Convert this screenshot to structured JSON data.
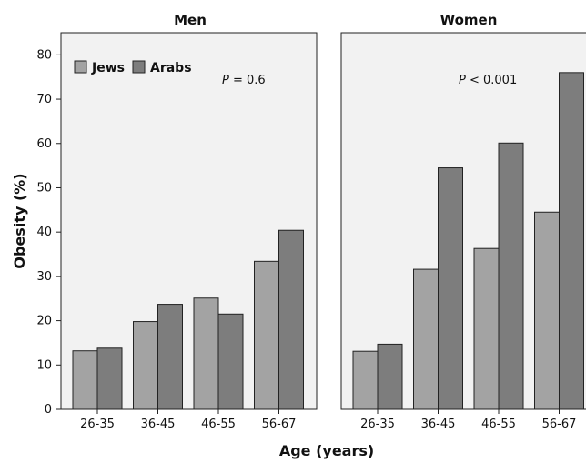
{
  "chart_data": {
    "type": "bar",
    "ylabel": "Obesity (%)",
    "xlabel": "Age (years)",
    "ylim": [
      0,
      85
    ],
    "yticks": [
      0,
      10,
      20,
      30,
      40,
      50,
      60,
      70,
      80
    ],
    "grid": false,
    "legend_position": "top-left",
    "categories": [
      "26-35",
      "36-45",
      "46-55",
      "56-67"
    ],
    "panels": [
      {
        "title": "Men",
        "annotation": {
          "p_label": "P",
          "text": " = 0.6"
        },
        "series": [
          {
            "name": "Jews",
            "color": "#a3a3a3",
            "values": [
              13.2,
              19.8,
              25.1,
              33.4
            ]
          },
          {
            "name": "Arabs",
            "color": "#7d7d7d",
            "values": [
              13.8,
              23.7,
              21.5,
              40.4
            ]
          }
        ]
      },
      {
        "title": "Women",
        "annotation": {
          "p_label": "P",
          "text": " < 0.001"
        },
        "series": [
          {
            "name": "Jews",
            "color": "#a3a3a3",
            "values": [
              13.1,
              31.6,
              36.3,
              44.5
            ]
          },
          {
            "name": "Arabs",
            "color": "#7d7d7d",
            "values": [
              14.7,
              54.5,
              60.1,
              76.0
            ]
          }
        ]
      }
    ]
  },
  "style": {
    "panel_bg": "#f2f2f2",
    "axis_color": "#222222"
  }
}
